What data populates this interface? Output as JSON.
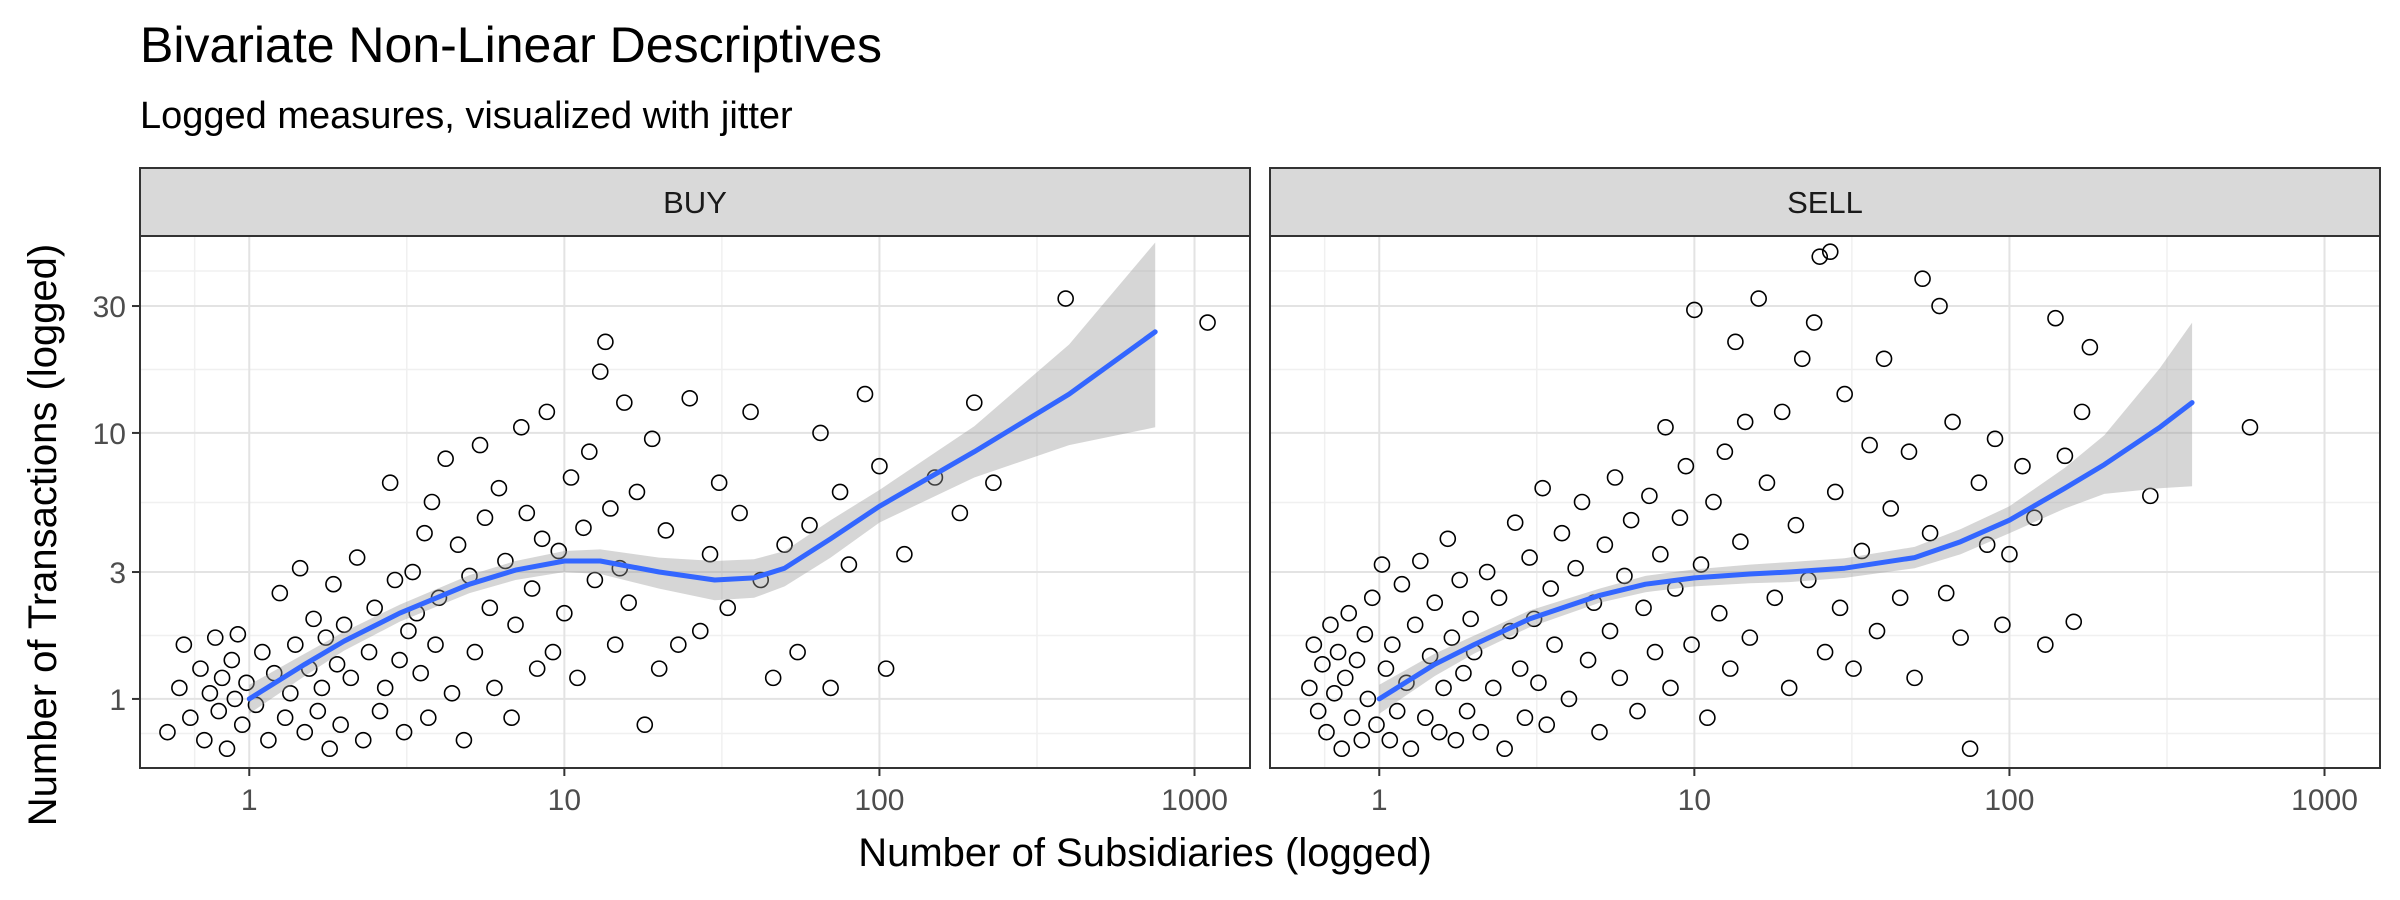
{
  "chart_data": {
    "type": "scatter",
    "title": "Bivariate Non-Linear Descriptives",
    "subtitle": "Logged measures, visualized with jitter",
    "xlabel": "Number of Subsidiaries (logged)",
    "ylabel": "Number of Transactions (logged)",
    "x_scale": "log10",
    "y_scale": "log10",
    "xlim": [
      0.45,
      1500
    ],
    "ylim": [
      0.55,
      55
    ],
    "x_ticks": [
      1,
      10,
      100,
      1000
    ],
    "x_tick_labels": [
      "1",
      "10",
      "100",
      "1000"
    ],
    "y_ticks": [
      1,
      3,
      10,
      30
    ],
    "y_tick_labels": [
      "1",
      "3",
      "10",
      "30"
    ],
    "grid": true,
    "colors": {
      "points": "#000000",
      "smooth": "#3366FF",
      "ribbon": "#999999",
      "strip": "#D9D9D9"
    },
    "panels": [
      {
        "label": "BUY",
        "points": [
          [
            0.55,
            0.75
          ],
          [
            0.6,
            1.1
          ],
          [
            0.62,
            1.6
          ],
          [
            0.65,
            0.85
          ],
          [
            0.7,
            1.3
          ],
          [
            0.72,
            0.7
          ],
          [
            0.75,
            1.05
          ],
          [
            0.78,
            1.7
          ],
          [
            0.8,
            0.9
          ],
          [
            0.82,
            1.2
          ],
          [
            0.85,
            0.65
          ],
          [
            0.88,
            1.4
          ],
          [
            0.9,
            1.0
          ],
          [
            0.92,
            1.75
          ],
          [
            0.95,
            0.8
          ],
          [
            0.98,
            1.15
          ],
          [
            1.05,
            0.95
          ],
          [
            1.1,
            1.5
          ],
          [
            1.15,
            0.7
          ],
          [
            1.2,
            1.25
          ],
          [
            1.25,
            2.5
          ],
          [
            1.3,
            0.85
          ],
          [
            1.35,
            1.05
          ],
          [
            1.4,
            1.6
          ],
          [
            1.45,
            3.1
          ],
          [
            1.5,
            0.75
          ],
          [
            1.55,
            1.3
          ],
          [
            1.6,
            2.0
          ],
          [
            1.65,
            0.9
          ],
          [
            1.7,
            1.1
          ],
          [
            1.75,
            1.7
          ],
          [
            1.8,
            0.65
          ],
          [
            1.85,
            2.7
          ],
          [
            1.9,
            1.35
          ],
          [
            1.95,
            0.8
          ],
          [
            2.0,
            1.9
          ],
          [
            2.1,
            1.2
          ],
          [
            2.2,
            3.4
          ],
          [
            2.3,
            0.7
          ],
          [
            2.4,
            1.5
          ],
          [
            2.5,
            2.2
          ],
          [
            2.6,
            0.9
          ],
          [
            2.7,
            1.1
          ],
          [
            2.8,
            6.5
          ],
          [
            2.9,
            2.8
          ],
          [
            3.0,
            1.4
          ],
          [
            3.1,
            0.75
          ],
          [
            3.2,
            1.8
          ],
          [
            3.3,
            3.0
          ],
          [
            3.4,
            2.1
          ],
          [
            3.5,
            1.25
          ],
          [
            3.6,
            4.2
          ],
          [
            3.7,
            0.85
          ],
          [
            3.8,
            5.5
          ],
          [
            3.9,
            1.6
          ],
          [
            4.0,
            2.4
          ],
          [
            4.2,
            8.0
          ],
          [
            4.4,
            1.05
          ],
          [
            4.6,
            3.8
          ],
          [
            4.8,
            0.7
          ],
          [
            5.0,
            2.9
          ],
          [
            5.2,
            1.5
          ],
          [
            5.4,
            9.0
          ],
          [
            5.6,
            4.8
          ],
          [
            5.8,
            2.2
          ],
          [
            6.0,
            1.1
          ],
          [
            6.2,
            6.2
          ],
          [
            6.5,
            3.3
          ],
          [
            6.8,
            0.85
          ],
          [
            7.0,
            1.9
          ],
          [
            7.3,
            10.5
          ],
          [
            7.6,
            5.0
          ],
          [
            7.9,
            2.6
          ],
          [
            8.2,
            1.3
          ],
          [
            8.5,
            4.0
          ],
          [
            8.8,
            12.0
          ],
          [
            9.2,
            1.5
          ],
          [
            9.6,
            3.6
          ],
          [
            10.0,
            2.1
          ],
          [
            10.5,
            6.8
          ],
          [
            11.0,
            1.2
          ],
          [
            11.5,
            4.4
          ],
          [
            12.0,
            8.5
          ],
          [
            12.5,
            2.8
          ],
          [
            13.0,
            17.0
          ],
          [
            13.5,
            22.0
          ],
          [
            14.0,
            5.2
          ],
          [
            14.5,
            1.6
          ],
          [
            15.0,
            3.1
          ],
          [
            15.5,
            13.0
          ],
          [
            16.0,
            2.3
          ],
          [
            17.0,
            6.0
          ],
          [
            18.0,
            0.8
          ],
          [
            19.0,
            9.5
          ],
          [
            20.0,
            1.3
          ],
          [
            21.0,
            4.3
          ],
          [
            23.0,
            1.6
          ],
          [
            25.0,
            13.5
          ],
          [
            27.0,
            1.8
          ],
          [
            29.0,
            3.5
          ],
          [
            31.0,
            6.5
          ],
          [
            33.0,
            2.2
          ],
          [
            36.0,
            5.0
          ],
          [
            39.0,
            12.0
          ],
          [
            42.0,
            2.8
          ],
          [
            46.0,
            1.2
          ],
          [
            50.0,
            3.8
          ],
          [
            55.0,
            1.5
          ],
          [
            60.0,
            4.5
          ],
          [
            65.0,
            10.0
          ],
          [
            70.0,
            1.1
          ],
          [
            75.0,
            6.0
          ],
          [
            80.0,
            3.2
          ],
          [
            90.0,
            14.0
          ],
          [
            100.0,
            7.5
          ],
          [
            105.0,
            1.3
          ],
          [
            120.0,
            3.5
          ],
          [
            150.0,
            6.8
          ],
          [
            180.0,
            5.0
          ],
          [
            200.0,
            13.0
          ],
          [
            230.0,
            6.5
          ],
          [
            390.0,
            32.0
          ],
          [
            1100.0,
            26.0
          ]
        ],
        "smooth_x": [
          1,
          1.5,
          2,
          3,
          5,
          7,
          10,
          13,
          20,
          30,
          40,
          50,
          70,
          100,
          200,
          400,
          750
        ],
        "smooth_y": [
          1.0,
          1.35,
          1.65,
          2.1,
          2.7,
          3.05,
          3.3,
          3.3,
          3.0,
          2.8,
          2.85,
          3.1,
          4.0,
          5.3,
          8.5,
          14.0,
          24.0
        ],
        "ribbon_low": [
          0.88,
          1.22,
          1.52,
          1.95,
          2.5,
          2.8,
          3.0,
          2.95,
          2.6,
          2.35,
          2.4,
          2.65,
          3.4,
          4.6,
          6.8,
          9.0,
          10.5
        ],
        "ribbon_high": [
          1.13,
          1.48,
          1.79,
          2.26,
          2.92,
          3.3,
          3.6,
          3.65,
          3.4,
          3.3,
          3.35,
          3.6,
          4.7,
          6.1,
          10.6,
          21.5,
          52.0
        ]
      },
      {
        "label": "SELL",
        "points": [
          [
            0.6,
            1.1
          ],
          [
            0.62,
            1.6
          ],
          [
            0.64,
            0.9
          ],
          [
            0.66,
            1.35
          ],
          [
            0.68,
            0.75
          ],
          [
            0.7,
            1.9
          ],
          [
            0.72,
            1.05
          ],
          [
            0.74,
            1.5
          ],
          [
            0.76,
            0.65
          ],
          [
            0.78,
            1.2
          ],
          [
            0.8,
            2.1
          ],
          [
            0.82,
            0.85
          ],
          [
            0.85,
            1.4
          ],
          [
            0.88,
            0.7
          ],
          [
            0.9,
            1.75
          ],
          [
            0.92,
            1.0
          ],
          [
            0.95,
            2.4
          ],
          [
            0.98,
            0.8
          ],
          [
            1.02,
            3.2
          ],
          [
            1.05,
            1.3
          ],
          [
            1.08,
            0.7
          ],
          [
            1.1,
            1.6
          ],
          [
            1.14,
            0.9
          ],
          [
            1.18,
            2.7
          ],
          [
            1.22,
            1.15
          ],
          [
            1.26,
            0.65
          ],
          [
            1.3,
            1.9
          ],
          [
            1.35,
            3.3
          ],
          [
            1.4,
            0.85
          ],
          [
            1.45,
            1.45
          ],
          [
            1.5,
            2.3
          ],
          [
            1.55,
            0.75
          ],
          [
            1.6,
            1.1
          ],
          [
            1.65,
            4.0
          ],
          [
            1.7,
            1.7
          ],
          [
            1.75,
            0.7
          ],
          [
            1.8,
            2.8
          ],
          [
            1.85,
            1.25
          ],
          [
            1.9,
            0.9
          ],
          [
            1.95,
            2.0
          ],
          [
            2.0,
            1.5
          ],
          [
            2.1,
            0.75
          ],
          [
            2.2,
            3.0
          ],
          [
            2.3,
            1.1
          ],
          [
            2.4,
            2.4
          ],
          [
            2.5,
            0.65
          ],
          [
            2.6,
            1.8
          ],
          [
            2.7,
            4.6
          ],
          [
            2.8,
            1.3
          ],
          [
            2.9,
            0.85
          ],
          [
            3.0,
            3.4
          ],
          [
            3.1,
            2.0
          ],
          [
            3.2,
            1.15
          ],
          [
            3.3,
            6.2
          ],
          [
            3.4,
            0.8
          ],
          [
            3.5,
            2.6
          ],
          [
            3.6,
            1.6
          ],
          [
            3.8,
            4.2
          ],
          [
            4.0,
            1.0
          ],
          [
            4.2,
            3.1
          ],
          [
            4.4,
            5.5
          ],
          [
            4.6,
            1.4
          ],
          [
            4.8,
            2.3
          ],
          [
            5.0,
            0.75
          ],
          [
            5.2,
            3.8
          ],
          [
            5.4,
            1.8
          ],
          [
            5.6,
            6.8
          ],
          [
            5.8,
            1.2
          ],
          [
            6.0,
            2.9
          ],
          [
            6.3,
            4.7
          ],
          [
            6.6,
            0.9
          ],
          [
            6.9,
            2.2
          ],
          [
            7.2,
            5.8
          ],
          [
            7.5,
            1.5
          ],
          [
            7.8,
            3.5
          ],
          [
            8.1,
            10.5
          ],
          [
            8.4,
            1.1
          ],
          [
            8.7,
            2.6
          ],
          [
            9.0,
            4.8
          ],
          [
            9.4,
            7.5
          ],
          [
            9.8,
            1.6
          ],
          [
            10.0,
            29.0
          ],
          [
            10.5,
            3.2
          ],
          [
            11.0,
            0.85
          ],
          [
            11.5,
            5.5
          ],
          [
            12.0,
            2.1
          ],
          [
            12.5,
            8.5
          ],
          [
            13.0,
            1.3
          ],
          [
            13.5,
            22.0
          ],
          [
            14.0,
            3.9
          ],
          [
            14.5,
            11.0
          ],
          [
            15.0,
            1.7
          ],
          [
            16.0,
            32.0
          ],
          [
            17.0,
            6.5
          ],
          [
            18.0,
            2.4
          ],
          [
            19.0,
            12.0
          ],
          [
            20.0,
            1.1
          ],
          [
            21.0,
            4.5
          ],
          [
            22.0,
            19.0
          ],
          [
            23.0,
            2.8
          ],
          [
            24.0,
            26.0
          ],
          [
            25.0,
            46.0
          ],
          [
            26.0,
            1.5
          ],
          [
            27.0,
            48.0
          ],
          [
            28.0,
            6.0
          ],
          [
            29.0,
            2.2
          ],
          [
            30.0,
            14.0
          ],
          [
            32.0,
            1.3
          ],
          [
            34.0,
            3.6
          ],
          [
            36.0,
            9.0
          ],
          [
            38.0,
            1.8
          ],
          [
            40.0,
            19.0
          ],
          [
            42.0,
            5.2
          ],
          [
            45.0,
            2.4
          ],
          [
            48.0,
            8.5
          ],
          [
            50.0,
            1.2
          ],
          [
            53.0,
            38.0
          ],
          [
            56.0,
            4.2
          ],
          [
            60.0,
            30.0
          ],
          [
            63.0,
            2.5
          ],
          [
            66.0,
            11.0
          ],
          [
            70.0,
            1.7
          ],
          [
            75.0,
            0.65
          ],
          [
            80.0,
            6.5
          ],
          [
            85.0,
            3.8
          ],
          [
            90.0,
            9.5
          ],
          [
            95.0,
            1.9
          ],
          [
            100.0,
            3.5
          ],
          [
            110.0,
            7.5
          ],
          [
            120.0,
            4.8
          ],
          [
            130.0,
            1.6
          ],
          [
            140.0,
            27.0
          ],
          [
            150.0,
            8.2
          ],
          [
            160.0,
            1.95
          ],
          [
            170.0,
            12.0
          ],
          [
            180.0,
            21.0
          ],
          [
            280.0,
            5.8
          ],
          [
            580.0,
            10.5
          ]
        ],
        "smooth_x": [
          1,
          1.5,
          2,
          3,
          5,
          7,
          10,
          15,
          20,
          30,
          50,
          70,
          100,
          150,
          200,
          300,
          380
        ],
        "smooth_y": [
          1.0,
          1.35,
          1.6,
          2.0,
          2.45,
          2.7,
          2.85,
          2.95,
          3.0,
          3.1,
          3.4,
          3.9,
          4.7,
          6.2,
          7.6,
          10.5,
          13.0
        ],
        "ribbon_low": [
          0.88,
          1.22,
          1.48,
          1.86,
          2.3,
          2.52,
          2.65,
          2.72,
          2.75,
          2.85,
          3.1,
          3.5,
          4.2,
          5.2,
          5.9,
          6.2,
          6.3
        ],
        "ribbon_high": [
          1.13,
          1.48,
          1.73,
          2.15,
          2.6,
          2.9,
          3.07,
          3.2,
          3.27,
          3.38,
          3.73,
          4.35,
          5.3,
          7.4,
          9.8,
          17.5,
          26.0
        ]
      }
    ]
  }
}
